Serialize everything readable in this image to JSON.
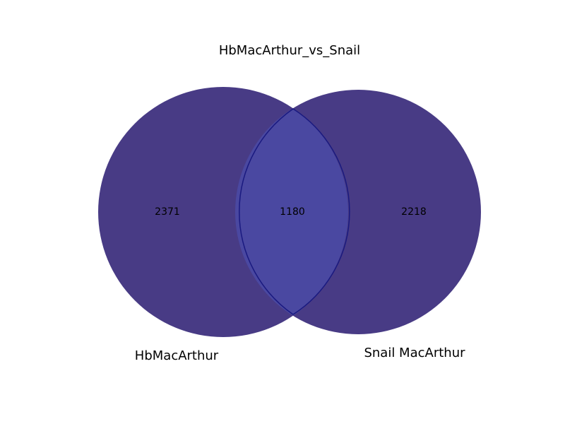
{
  "chart_data": {
    "type": "venn",
    "title": "HbMacArthur_vs_Snail",
    "sets": [
      {
        "name": "HbMacArthur",
        "only": 2371,
        "color": "#483b85"
      },
      {
        "name": "Snail MacArthur",
        "only": 2218,
        "color": "#483b85"
      }
    ],
    "intersection": 1180,
    "intersection_color": "#4a48a1",
    "intersection_outline_color": "#1a1a80"
  }
}
